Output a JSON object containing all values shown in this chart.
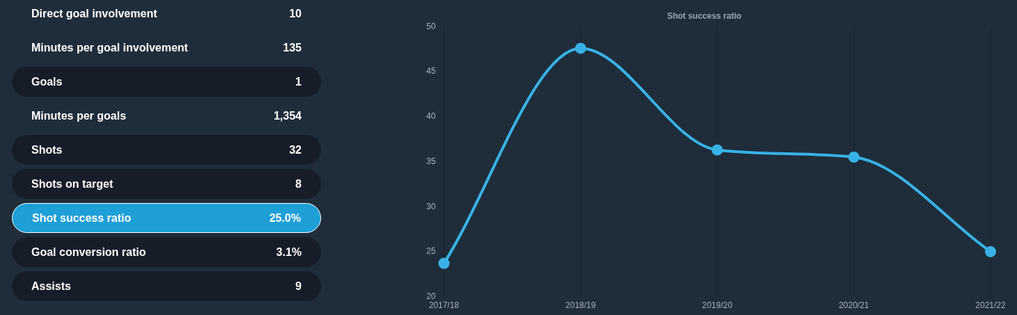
{
  "chart_data": [
    {
      "type": "other",
      "categories": [
        "Direct goal involvement",
        "Minutes per goal involvement",
        "Goals",
        "Minutes per goals",
        "Shots",
        "Shots on target",
        "Shot success ratio",
        "Goal conversion ratio",
        "Assists"
      ],
      "value_labels": [
        "10",
        "135",
        "1",
        "1,354",
        "32",
        "8",
        "25.0%",
        "3.1%",
        "9"
      ],
      "colors": [
        "#1f2d3b",
        "#1f2d3b",
        "#161d29",
        "#1f2d3b",
        "#161d29",
        "#161d29",
        "#1e9fd6",
        "#161d29",
        "#161d29"
      ]
    },
    {
      "type": "line",
      "title": "Shot success ratio",
      "categories": [
        "2017/18",
        "2018/19",
        "2019/20",
        "2020/21",
        "2021/22"
      ],
      "series": [
        {
          "color": "#38b2e6",
          "values": [
            23.7,
            47.6,
            36.3,
            35.5,
            25.0
          ]
        }
      ],
      "ylim": [
        20,
        50
      ],
      "yticks": [
        20,
        25,
        30,
        35,
        40,
        45,
        50
      ],
      "grid": "x",
      "marker": "circle",
      "legend": false
    }
  ]
}
